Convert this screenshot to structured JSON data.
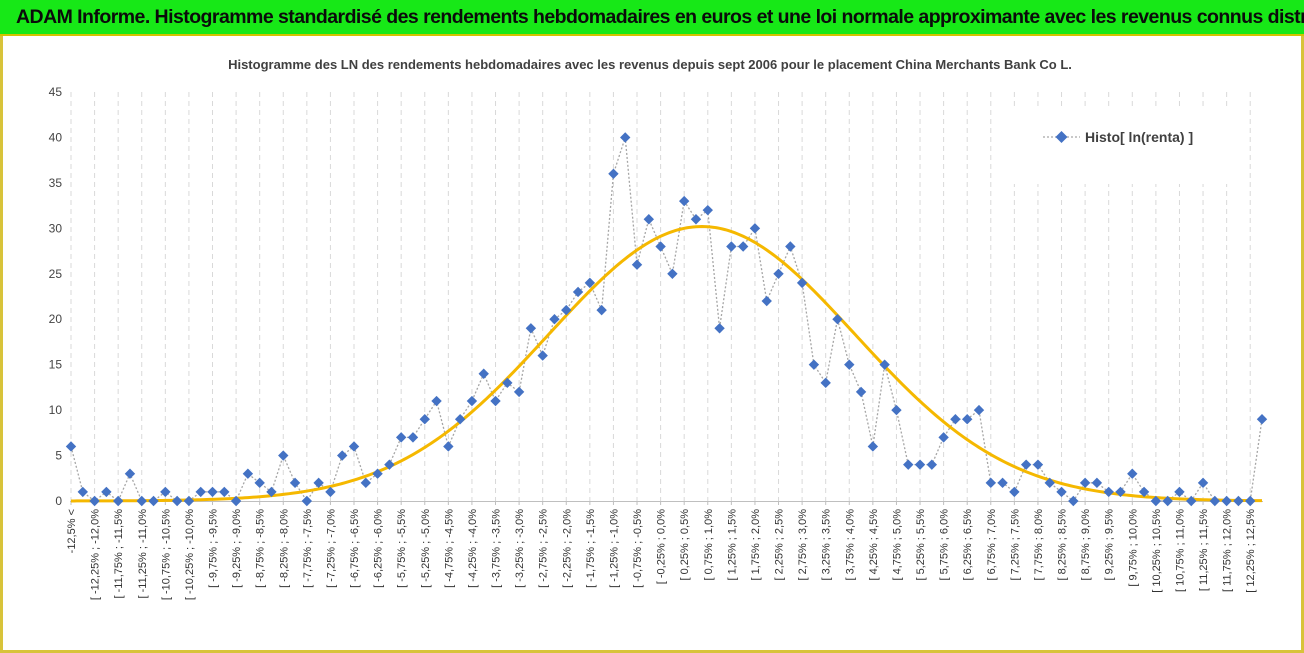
{
  "banner": {
    "title": "ADAM Informe. Histogramme standardisé des rendements hebdomadaires en euros et une loi normale approximante avec les revenus connus distribués"
  },
  "colors": {
    "banner_bg": "#17e817",
    "frame_border": "#d8c33a",
    "marker": "#4472c4",
    "connector": "#a6a6a6",
    "normal_curve": "#f5b800",
    "grid": "#d9d9d9"
  },
  "chart_data": {
    "type": "scatter",
    "title": "Histogramme des LN des rendements hebdomadaires avec les revenus depuis sept 2006 pour le placement China Merchants Bank Co L.",
    "xlabel": "",
    "ylabel": "",
    "ylim": [
      0,
      45
    ],
    "yticks": [
      0,
      5,
      10,
      15,
      20,
      25,
      30,
      35,
      40,
      45
    ],
    "grid": {
      "vertical": true,
      "horizontal": false
    },
    "legend_position": "top-right",
    "categories": [
      "-12,5% <",
      "[ -12,25% ; -12,0%",
      "[ -11,75% ; -11,5%",
      "[ -11,25% ; -11,0%",
      "[ -10,75% ; -10,5%",
      "[ -10,25% ; -10,0%",
      "[ -9,75% ; -9,5%",
      "[ -9,25% ; -9,0%",
      "[ -8,75% ; -8,5%",
      "[ -8,25% ; -8,0%",
      "[ -7,75% ; -7,5%",
      "[ -7,25% ; -7,0%",
      "[ -6,75% ; -6,5%",
      "[ -6,25% ; -6,0%",
      "[ -5,75% ; -5,5%",
      "[ -5,25% ; -5,0%",
      "[ -4,75% ; -4,5%",
      "[ -4,25% ; -4,0%",
      "[ -3,75% ; -3,5%",
      "[ -3,25% ; -3,0%",
      "[ -2,75% ; -2,5%",
      "[ -2,25% ; -2,0%",
      "[ -1,75% ; -1,5%",
      "[ -1,25% ; -1,0%",
      "[ -0,75% ; -0,5%",
      "[ -0,25% ; 0,0%",
      "[ 0,25% ; 0,5%",
      "[ 0,75% ; 1,0%",
      "[ 1,25% ; 1,5%",
      "[ 1,75% ; 2,0%",
      "[ 2,25% ; 2,5%",
      "[ 2,75% ; 3,0%",
      "[ 3,25% ; 3,5%",
      "[ 3,75% ; 4,0%",
      "[ 4,25% ; 4,5%",
      "[ 4,75% ; 5,0%",
      "[ 5,25% ; 5,5%",
      "[ 5,75% ; 6,0%",
      "[ 6,25% ; 6,5%",
      "[ 6,75% ; 7,0%",
      "[ 7,25% ; 7,5%",
      "[ 7,75% ; 8,0%",
      "[ 8,25% ; 8,5%",
      "[ 8,75% ; 9,0%",
      "[ 9,25% ; 9,5%",
      "[ 9,75% ; 10,0%",
      "[ 10,25% ; 10,5%",
      "[ 10,75% ; 11,0%",
      "[ 11,25% ; 11,5%",
      "[ 11,75% ; 12,0%",
      "[ 12,25% ; 12,5%"
    ],
    "series": [
      {
        "name": "Histo[ ln(renta) ]",
        "values": [
          6,
          1,
          0,
          1,
          0,
          3,
          0,
          0,
          1,
          0,
          0,
          1,
          1,
          1,
          0,
          3,
          2,
          1,
          5,
          2,
          0,
          2,
          1,
          5,
          6,
          2,
          3,
          4,
          7,
          7,
          9,
          11,
          6,
          9,
          11,
          14,
          11,
          13,
          12,
          19,
          16,
          20,
          21,
          23,
          24,
          21,
          36,
          40,
          26,
          31,
          28,
          25,
          33,
          31,
          32,
          19,
          28,
          28,
          30,
          22,
          25,
          28,
          24,
          15,
          13,
          20,
          15,
          12,
          6,
          15,
          10,
          4,
          4,
          4,
          7,
          9,
          9,
          10,
          2,
          2,
          1,
          4,
          4,
          2,
          1,
          0,
          2,
          2,
          1,
          1,
          3,
          1,
          0,
          0,
          1,
          0,
          2,
          0,
          0,
          0,
          0,
          9
        ]
      },
      {
        "name": "",
        "type": "normal_curve",
        "mean_category_index": 53.5,
        "sd_categories": 13.0,
        "peak": 30.2
      }
    ]
  }
}
